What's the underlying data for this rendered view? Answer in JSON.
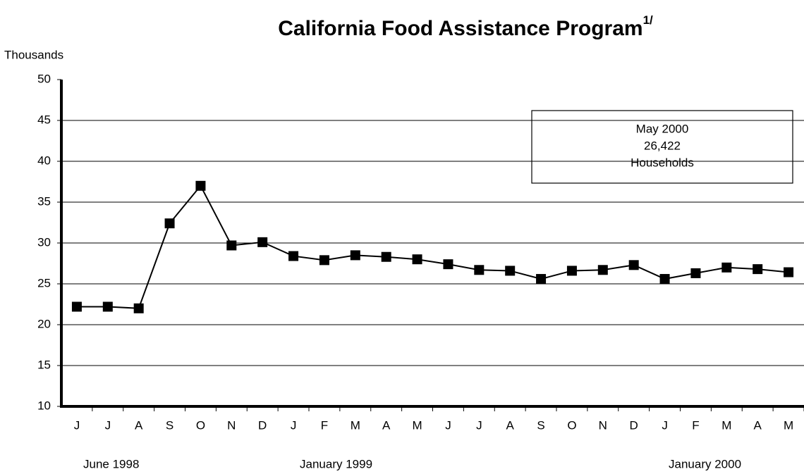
{
  "chart_data": {
    "type": "line",
    "title": "California Food Assistance Program",
    "title_note": "1/",
    "y_label": "Thousands",
    "categories": [
      "J",
      "J",
      "A",
      "S",
      "O",
      "N",
      "D",
      "J",
      "F",
      "M",
      "A",
      "M",
      "J",
      "J",
      "A",
      "S",
      "O",
      "N",
      "D",
      "J",
      "F",
      "M",
      "A",
      "M"
    ],
    "period_labels": [
      "June 1998",
      "January  1999",
      "January 2000"
    ],
    "annotation": [
      "May 2000",
      "26,422",
      "Households"
    ],
    "series": [
      {
        "name": "Households",
        "color": "#000000",
        "values": [
          22.2,
          22.2,
          22.0,
          32.4,
          37.0,
          29.7,
          30.1,
          28.4,
          27.9,
          28.5,
          28.3,
          28.0,
          27.4,
          26.7,
          26.6,
          25.6,
          26.6,
          26.7,
          27.3,
          25.6,
          26.3,
          27.0,
          26.8,
          26.422
        ]
      }
    ],
    "ylim": [
      10,
      50
    ],
    "yticks": [
      10,
      15,
      20,
      25,
      30,
      35,
      40,
      45,
      50
    ],
    "grid": true
  }
}
